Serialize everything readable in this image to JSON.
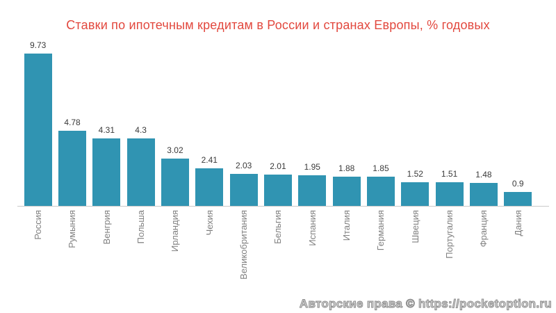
{
  "title": "Ставки по ипотечным кредитам в России и странах Европы, % годовых",
  "watermark": "Авторские права © https://pocketoption.ru",
  "colors": {
    "title": "#e2483e",
    "bar": "#3094b2",
    "value_label": "#3a3a3a",
    "category_label": "#808080",
    "axis_line": "#c9c9c9"
  },
  "chart_data": {
    "type": "bar",
    "title": "Ставки по ипотечным кредитам в России и странах Европы, % годовых",
    "categories": [
      "Россия",
      "Румыния",
      "Венгрия",
      "Польша",
      "Ирландия",
      "Чехия",
      "Великобритания",
      "Бельгия",
      "Испания",
      "Италия",
      "Германия",
      "Швеция",
      "Португалия",
      "Франция",
      "Дания"
    ],
    "values": [
      9.73,
      4.78,
      4.31,
      4.3,
      3.02,
      2.41,
      2.03,
      2.01,
      1.95,
      1.88,
      1.85,
      1.52,
      1.51,
      1.48,
      0.9
    ],
    "value_labels": [
      "9.73",
      "4.78",
      "4.31",
      "4.3",
      "3.02",
      "2.41",
      "2.03",
      "2.01",
      "1.95",
      "1.88",
      "1.85",
      "1.52",
      "1.51",
      "1.48",
      "0.9"
    ],
    "xlabel": "",
    "ylabel": "",
    "ylim": [
      0,
      10
    ],
    "grid": false,
    "legend": null,
    "y_axis_visible": false,
    "x_tick_rotation_deg": 90,
    "unit": "% годовых"
  }
}
